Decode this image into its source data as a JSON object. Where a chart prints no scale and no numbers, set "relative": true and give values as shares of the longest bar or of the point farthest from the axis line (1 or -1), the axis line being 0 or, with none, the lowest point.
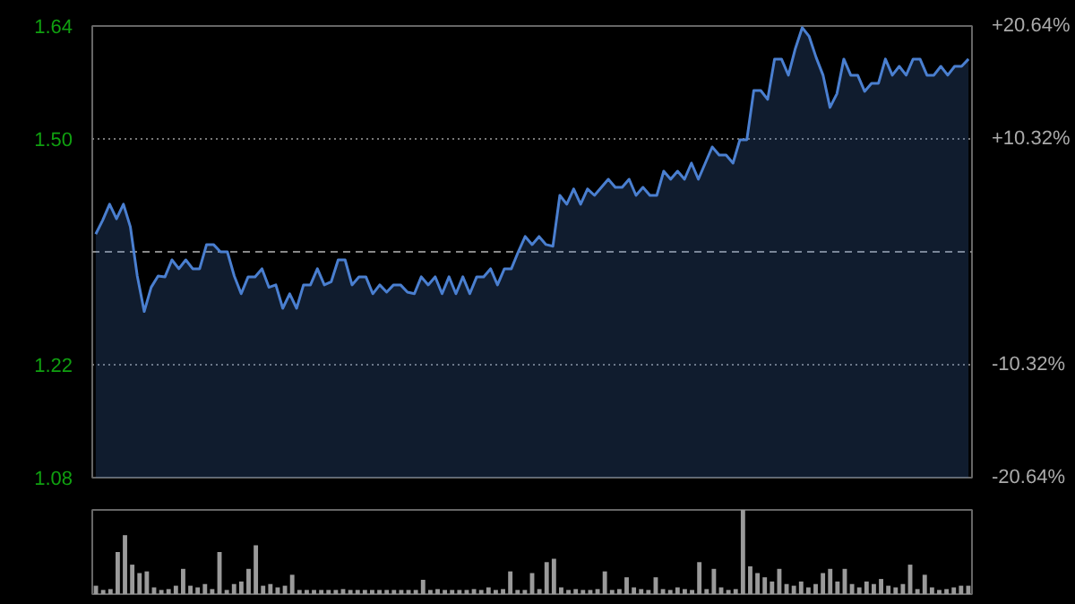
{
  "chart_data": [
    {
      "type": "area",
      "categories": [
        null,
        null,
        null,
        null,
        null,
        null,
        null,
        null,
        null,
        null,
        null,
        null,
        null,
        null,
        null,
        null,
        null,
        null,
        null,
        null,
        null,
        null,
        null,
        null,
        null,
        null,
        null,
        null,
        null,
        null,
        null,
        null,
        null,
        null,
        null,
        null,
        null,
        null,
        null,
        null,
        null,
        null,
        null,
        null,
        null,
        null,
        null,
        null,
        null,
        null,
        null,
        null,
        null,
        null,
        null,
        null,
        null,
        null,
        null,
        null,
        null,
        null,
        null,
        null,
        null,
        null,
        null,
        null,
        null,
        null,
        null,
        null,
        null,
        null,
        null,
        null,
        null,
        null,
        null,
        null,
        null,
        null,
        null,
        null,
        null,
        null,
        null,
        null,
        null,
        null,
        null,
        null,
        null,
        null,
        null,
        null,
        null,
        null,
        null,
        null,
        null,
        null,
        null,
        null,
        null,
        null,
        null,
        null,
        null,
        null,
        null,
        null,
        null,
        null,
        null,
        null,
        null,
        null,
        null,
        null,
        null,
        null,
        null,
        null,
        null,
        null,
        null
      ],
      "series": [
        {
          "color": "#4a7fd0",
          "values": [
            1.382,
            1.399,
            1.419,
            1.401,
            1.419,
            1.391,
            1.33,
            1.286,
            1.316,
            1.33,
            1.329,
            1.35,
            1.339,
            1.35,
            1.339,
            1.339,
            1.369,
            1.369,
            1.36,
            1.36,
            1.33,
            1.308,
            1.329,
            1.329,
            1.339,
            1.316,
            1.319,
            1.29,
            1.308,
            1.29,
            1.319,
            1.319,
            1.339,
            1.319,
            1.323,
            1.35,
            1.35,
            1.319,
            1.329,
            1.329,
            1.308,
            1.319,
            1.31,
            1.319,
            1.319,
            1.31,
            1.308,
            1.329,
            1.319,
            1.329,
            1.308,
            1.329,
            1.308,
            1.329,
            1.308,
            1.329,
            1.329,
            1.339,
            1.319,
            1.339,
            1.339,
            1.36,
            1.379,
            1.369,
            1.379,
            1.369,
            1.367,
            1.43,
            1.419,
            1.438,
            1.419,
            1.438,
            1.43,
            1.44,
            1.45,
            1.44,
            1.44,
            1.45,
            1.43,
            1.44,
            1.43,
            1.43,
            1.46,
            1.45,
            1.46,
            1.45,
            1.47,
            1.45,
            1.47,
            1.49,
            1.48,
            1.48,
            1.47,
            1.499,
            1.499,
            1.56,
            1.56,
            1.549,
            1.599,
            1.599,
            1.579,
            1.612,
            1.638,
            1.627,
            1.601,
            1.579,
            1.539,
            1.556,
            1.599,
            1.579,
            1.579,
            1.559,
            1.569,
            1.569,
            1.599,
            1.579,
            1.59,
            1.579,
            1.599,
            1.599,
            1.579,
            1.579,
            1.59,
            1.579,
            1.59,
            1.59,
            1.599
          ]
        }
      ],
      "ylim": [
        1.08,
        1.64
      ],
      "yticks": [
        {
          "value": 1.08,
          "label": "1.08"
        },
        {
          "value": 1.22,
          "label": "1.22"
        },
        {
          "value": 1.5,
          "label": "1.50"
        },
        {
          "value": 1.64,
          "label": "1.64"
        }
      ],
      "y2lim": [
        -20.64,
        20.64
      ],
      "y2ticks": [
        {
          "value": -20.64,
          "label": "-20.64%"
        },
        {
          "value": -10.32,
          "label": "-10.32%"
        },
        {
          "value": 10.32,
          "label": "+10.32%"
        },
        {
          "value": 20.64,
          "label": "+20.64%"
        }
      ],
      "ref_lines": [
        {
          "axis": "y",
          "value": 1.36,
          "line_style": "dashed",
          "color": "#888888"
        }
      ],
      "grid": "y"
    },
    {
      "type": "bar",
      "relative": true,
      "categories": [
        null,
        null,
        null,
        null,
        null,
        null,
        null,
        null,
        null,
        null,
        null,
        null,
        null,
        null,
        null,
        null,
        null,
        null,
        null,
        null,
        null,
        null,
        null,
        null,
        null,
        null,
        null,
        null,
        null,
        null,
        null,
        null,
        null,
        null,
        null,
        null,
        null,
        null,
        null,
        null,
        null,
        null,
        null,
        null,
        null,
        null,
        null,
        null,
        null,
        null,
        null,
        null,
        null,
        null,
        null,
        null,
        null,
        null,
        null,
        null,
        null,
        null,
        null,
        null,
        null,
        null,
        null,
        null,
        null,
        null,
        null,
        null,
        null,
        null,
        null,
        null,
        null,
        null,
        null,
        null,
        null,
        null,
        null,
        null,
        null,
        null,
        null,
        null,
        null,
        null,
        null,
        null,
        null,
        null,
        null,
        null,
        null,
        null,
        null,
        null,
        null,
        null,
        null,
        null,
        null,
        null,
        null,
        null,
        null,
        null,
        null,
        null,
        null,
        null,
        null,
        null,
        null,
        null,
        null,
        null,
        null
      ],
      "values": [
        0.1,
        0.05,
        0.06,
        0.5,
        0.7,
        0.35,
        0.25,
        0.27,
        0.08,
        0.05,
        0.06,
        0.1,
        0.3,
        0.1,
        0.08,
        0.12,
        0.06,
        0.5,
        0.05,
        0.12,
        0.15,
        0.3,
        0.58,
        0.1,
        0.12,
        0.08,
        0.1,
        0.23,
        0.05,
        0.05,
        0.05,
        0.05,
        0.05,
        0.05,
        0.06,
        0.05,
        0.05,
        0.05,
        0.05,
        0.05,
        0.05,
        0.05,
        0.05,
        0.05,
        0.05,
        0.17,
        0.05,
        0.06,
        0.05,
        0.05,
        0.05,
        0.05,
        0.06,
        0.05,
        0.08,
        0.05,
        0.06,
        0.27,
        0.05,
        0.05,
        0.25,
        0.06,
        0.38,
        0.42,
        0.08,
        0.05,
        0.06,
        0.05,
        0.05,
        0.06,
        0.27,
        0.05,
        0.06,
        0.2,
        0.08,
        0.06,
        0.05,
        0.2,
        0.06,
        0.05,
        0.08,
        0.06,
        0.05,
        0.38,
        0.06,
        0.3,
        0.08,
        0.05,
        0.06,
        1.0,
        0.33,
        0.25,
        0.2,
        0.15,
        0.3,
        0.12,
        0.1,
        0.15,
        0.08,
        0.12,
        0.25,
        0.3,
        0.15,
        0.3,
        0.12,
        0.08,
        0.15,
        0.12,
        0.18,
        0.1,
        0.08,
        0.12,
        0.35,
        0.06,
        0.23,
        0.08,
        0.05,
        0.06,
        0.08,
        0.1,
        0.1
      ],
      "color": "#9a9a9a"
    }
  ]
}
